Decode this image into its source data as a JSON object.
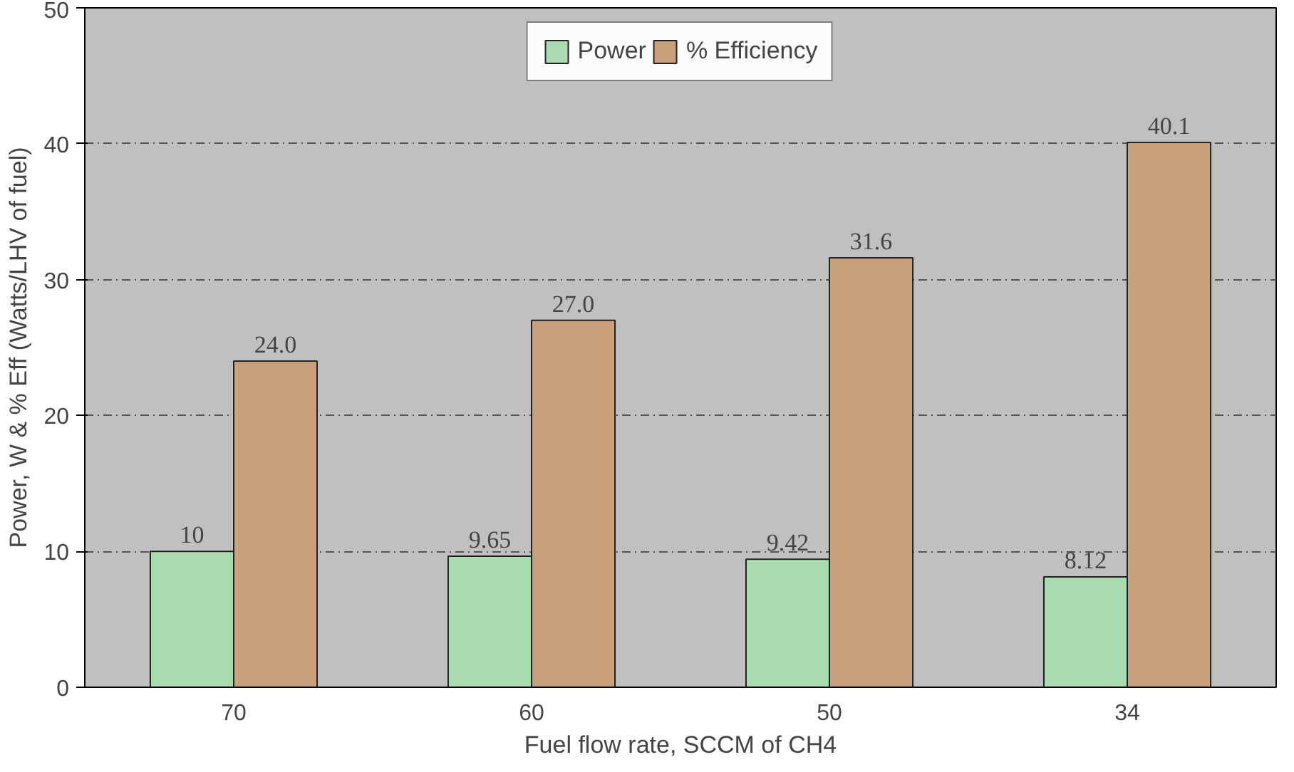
{
  "chart_data": {
    "type": "bar",
    "xlabel": "Fuel flow rate, SCCM of CH4",
    "ylabel": "Power, W & % Eff (Watts/LHV of fuel)",
    "categories": [
      "70",
      "60",
      "50",
      "34"
    ],
    "series": [
      {
        "name": "Power",
        "color": "#a8dcb0",
        "values": [
          10,
          9.65,
          9.42,
          8.12
        ],
        "value_labels": [
          "10",
          "9.65",
          "9.42",
          "8.12"
        ]
      },
      {
        "name": "% Efficiency",
        "color": "#c9a07a",
        "values": [
          24.0,
          27.0,
          31.6,
          40.1
        ],
        "value_labels": [
          "24.0",
          "27.0",
          "31.6",
          "40.1"
        ]
      }
    ],
    "ylim": [
      0,
      50
    ],
    "yticks": [
      0,
      10,
      20,
      30,
      40,
      50
    ],
    "grid": "y",
    "legend": "top"
  }
}
